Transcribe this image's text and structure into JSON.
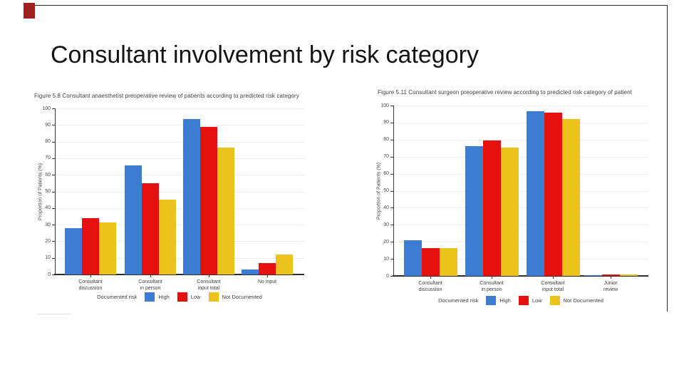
{
  "slide": {
    "title": "Consultant involvement by risk category"
  },
  "decorations": {
    "accent_rect_color": "#A02020",
    "border_line_color": "#262626"
  },
  "chart_data": [
    {
      "type": "bar",
      "title": "Figure 5.8  Consultant anaesthetist preoperative review of patients according to predicted risk category",
      "categories": [
        "Consultant\ndiscussion",
        "Consultant\nin person",
        "Consultant\ninput total",
        "No input"
      ],
      "series": [
        {
          "name": "High",
          "color": "#3C7CD2",
          "values": [
            28,
            65.5,
            93.5,
            3
          ]
        },
        {
          "name": "Low",
          "color": "#E8100E",
          "values": [
            34,
            55,
            89,
            7
          ]
        },
        {
          "name": "Not Documented",
          "color": "#EBC31A",
          "values": [
            31.5,
            45,
            76.5,
            12
          ]
        }
      ],
      "xlabel": "",
      "ylabel": "Proportion of Patients (%)",
      "ylim": [
        0,
        100
      ],
      "ytick_step": 10,
      "grid": true,
      "legend_label": "Documented risk",
      "legend_position": "bottom"
    },
    {
      "type": "bar",
      "title": "Figure 5.11  Consultant surgeon preoperative review according to predicted risk category of patient",
      "categories": [
        "Consultant\ndiscussion",
        "Consultant\nin person",
        "Consultant\ninput total",
        "Junior\nreview"
      ],
      "series": [
        {
          "name": "High",
          "color": "#3C7CD2",
          "values": [
            21,
            76,
            96.5,
            0.5
          ]
        },
        {
          "name": "Low",
          "color": "#E8100E",
          "values": [
            16.5,
            79.5,
            96,
            1
          ]
        },
        {
          "name": "Not Documented",
          "color": "#EBC31A",
          "values": [
            16.5,
            75.5,
            92,
            1
          ]
        }
      ],
      "xlabel": "",
      "ylabel": "Proportion of Patients (%)",
      "ylim": [
        0,
        100
      ],
      "ytick_step": 10,
      "grid": true,
      "legend_label": "Documented risk",
      "legend_position": "bottom"
    }
  ]
}
